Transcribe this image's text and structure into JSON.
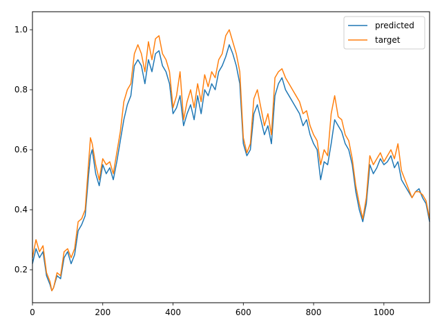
{
  "chart_data": {
    "type": "line",
    "title": "",
    "xlabel": "",
    "ylabel": "",
    "xlim": [
      0,
      1130
    ],
    "ylim": [
      0.09,
      1.06
    ],
    "xticks": [
      0,
      200,
      400,
      600,
      800,
      1000
    ],
    "yticks": [
      0.2,
      0.4,
      0.6,
      0.8,
      1.0
    ],
    "xtick_labels": [
      "0",
      "200",
      "400",
      "600",
      "800",
      "1000"
    ],
    "ytick_labels": [
      "0.2",
      "0.4",
      "0.6",
      "0.8",
      "1.0"
    ],
    "grid": false,
    "legend_position": "top-right",
    "series": [
      {
        "name": "predicted",
        "color": "#1f77b4",
        "x": [
          0,
          10,
          20,
          30,
          40,
          50,
          55,
          60,
          70,
          80,
          90,
          100,
          110,
          120,
          130,
          140,
          150,
          160,
          165,
          170,
          180,
          190,
          200,
          210,
          220,
          230,
          240,
          250,
          260,
          270,
          280,
          290,
          300,
          310,
          320,
          330,
          340,
          350,
          360,
          370,
          380,
          390,
          400,
          410,
          420,
          430,
          440,
          450,
          460,
          470,
          480,
          490,
          500,
          510,
          520,
          530,
          540,
          550,
          560,
          570,
          580,
          590,
          600,
          610,
          620,
          630,
          640,
          650,
          660,
          670,
          680,
          690,
          700,
          710,
          720,
          730,
          740,
          750,
          760,
          770,
          780,
          790,
          800,
          810,
          820,
          830,
          840,
          850,
          860,
          870,
          880,
          890,
          900,
          910,
          920,
          930,
          940,
          950,
          960,
          970,
          980,
          990,
          1000,
          1010,
          1020,
          1030,
          1040,
          1050,
          1060,
          1070,
          1080,
          1090,
          1100,
          1110,
          1120,
          1130
        ],
        "y": [
          0.22,
          0.27,
          0.24,
          0.26,
          0.18,
          0.15,
          0.13,
          0.14,
          0.18,
          0.17,
          0.24,
          0.26,
          0.22,
          0.25,
          0.33,
          0.35,
          0.38,
          0.52,
          0.58,
          0.6,
          0.52,
          0.48,
          0.55,
          0.52,
          0.54,
          0.5,
          0.56,
          0.63,
          0.7,
          0.75,
          0.78,
          0.88,
          0.9,
          0.88,
          0.82,
          0.9,
          0.86,
          0.92,
          0.93,
          0.88,
          0.86,
          0.82,
          0.72,
          0.74,
          0.78,
          0.68,
          0.72,
          0.75,
          0.7,
          0.78,
          0.72,
          0.8,
          0.78,
          0.82,
          0.8,
          0.86,
          0.88,
          0.91,
          0.95,
          0.92,
          0.88,
          0.82,
          0.62,
          0.58,
          0.6,
          0.72,
          0.75,
          0.7,
          0.65,
          0.68,
          0.62,
          0.78,
          0.82,
          0.84,
          0.8,
          0.78,
          0.76,
          0.74,
          0.72,
          0.68,
          0.7,
          0.65,
          0.62,
          0.6,
          0.5,
          0.56,
          0.55,
          0.62,
          0.7,
          0.68,
          0.66,
          0.62,
          0.6,
          0.55,
          0.46,
          0.4,
          0.36,
          0.42,
          0.55,
          0.52,
          0.54,
          0.57,
          0.55,
          0.56,
          0.58,
          0.54,
          0.56,
          0.5,
          0.48,
          0.46,
          0.44,
          0.46,
          0.47,
          0.44,
          0.42,
          0.36
        ]
      },
      {
        "name": "target",
        "color": "#ff7f0e",
        "x": [
          0,
          10,
          20,
          30,
          40,
          50,
          55,
          60,
          70,
          80,
          90,
          100,
          110,
          120,
          130,
          140,
          150,
          160,
          165,
          170,
          180,
          190,
          200,
          210,
          220,
          230,
          240,
          250,
          260,
          270,
          280,
          290,
          300,
          310,
          320,
          330,
          340,
          350,
          360,
          370,
          380,
          390,
          400,
          410,
          420,
          430,
          440,
          450,
          460,
          470,
          480,
          490,
          500,
          510,
          520,
          530,
          540,
          550,
          560,
          570,
          580,
          590,
          600,
          610,
          620,
          630,
          640,
          650,
          660,
          670,
          680,
          690,
          700,
          710,
          720,
          730,
          740,
          750,
          760,
          770,
          780,
          790,
          800,
          810,
          820,
          830,
          840,
          850,
          860,
          870,
          880,
          890,
          900,
          910,
          920,
          930,
          940,
          950,
          960,
          970,
          980,
          990,
          1000,
          1010,
          1020,
          1030,
          1040,
          1050,
          1060,
          1070,
          1080,
          1090,
          1100,
          1110,
          1120,
          1130
        ],
        "y": [
          0.24,
          0.3,
          0.26,
          0.28,
          0.19,
          0.16,
          0.13,
          0.14,
          0.19,
          0.18,
          0.26,
          0.27,
          0.24,
          0.27,
          0.36,
          0.37,
          0.4,
          0.56,
          0.64,
          0.62,
          0.55,
          0.5,
          0.57,
          0.55,
          0.56,
          0.52,
          0.59,
          0.66,
          0.76,
          0.8,
          0.82,
          0.92,
          0.95,
          0.92,
          0.86,
          0.96,
          0.9,
          0.97,
          0.98,
          0.92,
          0.9,
          0.86,
          0.74,
          0.78,
          0.86,
          0.7,
          0.76,
          0.8,
          0.74,
          0.82,
          0.76,
          0.85,
          0.81,
          0.86,
          0.84,
          0.9,
          0.92,
          0.98,
          1.0,
          0.96,
          0.92,
          0.86,
          0.64,
          0.59,
          0.62,
          0.77,
          0.8,
          0.74,
          0.68,
          0.72,
          0.65,
          0.84,
          0.86,
          0.87,
          0.84,
          0.82,
          0.8,
          0.78,
          0.76,
          0.72,
          0.73,
          0.68,
          0.65,
          0.63,
          0.55,
          0.6,
          0.58,
          0.72,
          0.78,
          0.71,
          0.7,
          0.65,
          0.63,
          0.57,
          0.48,
          0.42,
          0.37,
          0.44,
          0.58,
          0.55,
          0.57,
          0.59,
          0.56,
          0.58,
          0.6,
          0.57,
          0.62,
          0.53,
          0.5,
          0.47,
          0.44,
          0.46,
          0.46,
          0.45,
          0.43,
          0.37
        ]
      }
    ]
  }
}
